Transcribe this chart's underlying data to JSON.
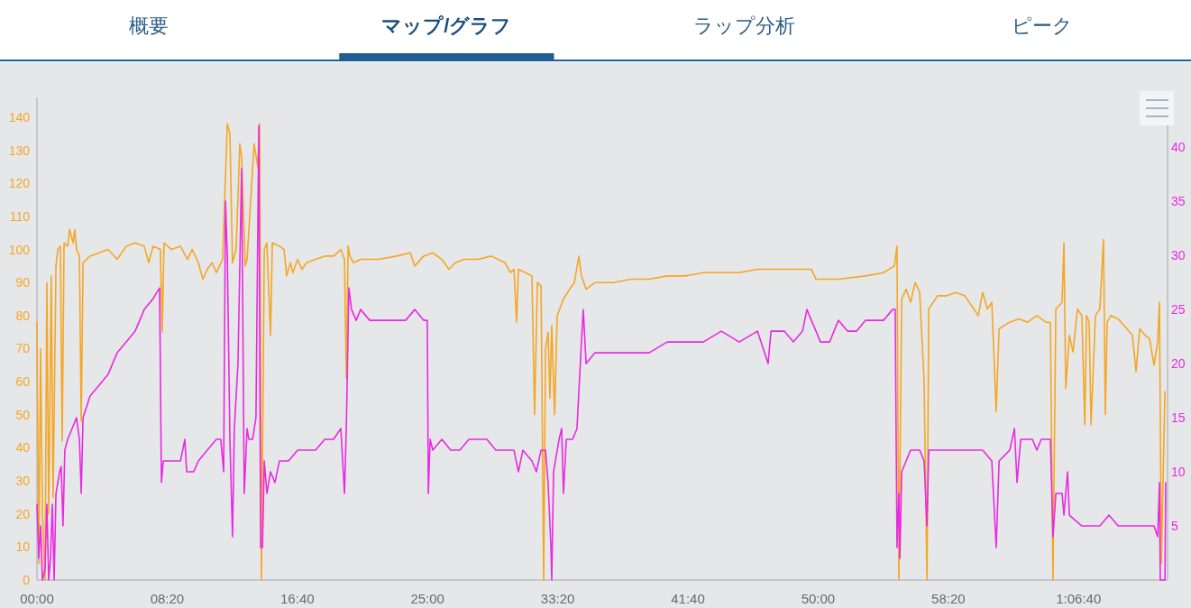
{
  "chart_data": {
    "type": "line",
    "annotations": [
      "概要",
      "マップ/グラフ",
      "ラップ分析",
      "ピーク"
    ],
    "xlim": [
      0,
      4342
    ],
    "ylim": [
      0,
      146
    ],
    "y2lim": [
      0,
      44.6
    ],
    "xticks": [
      {
        "value": 0,
        "label": "00:00"
      },
      {
        "value": 500,
        "label": "08:20"
      },
      {
        "value": 1000,
        "label": "16:40"
      },
      {
        "value": 1500,
        "label": "25:00"
      },
      {
        "value": 2000,
        "label": "33:20"
      },
      {
        "value": 2500,
        "label": "41:40"
      },
      {
        "value": 3000,
        "label": "50:00"
      },
      {
        "value": 3500,
        "label": "58:20"
      },
      {
        "value": 4000,
        "label": "1:06:40"
      }
    ],
    "yticks": [
      0,
      10,
      20,
      30,
      40,
      50,
      60,
      70,
      80,
      90,
      100,
      110,
      120,
      130,
      140
    ],
    "y2ticks": [
      5,
      10,
      15,
      20,
      25,
      30,
      35,
      40
    ],
    "series": [
      {
        "color": "#f5a623",
        "axis": "y",
        "x": [
          0,
          7,
          14,
          21,
          31,
          38,
          45,
          55,
          62,
          73,
          80,
          90,
          97,
          104,
          118,
          125,
          139,
          145,
          152,
          163,
          170,
          177,
          204,
          239,
          273,
          308,
          343,
          377,
          412,
          429,
          446,
          474,
          481,
          488,
          516,
          551,
          578,
          596,
          620,
          637,
          654,
          672,
          689,
          713,
          731,
          741,
          751,
          765,
          779,
          786,
          800,
          807,
          834,
          848,
          855,
          862,
          873,
          883,
          897,
          904,
          931,
          949,
          959,
          973,
          983,
          1001,
          1018,
          1035,
          1070,
          1105,
          1139,
          1167,
          1181,
          1188,
          1195,
          1202,
          1215,
          1243,
          1312,
          1382,
          1434,
          1451,
          1485,
          1520,
          1555,
          1582,
          1607,
          1641,
          1693,
          1745,
          1797,
          1818,
          1832,
          1842,
          1849,
          1901,
          1911,
          1922,
          1936,
          1946,
          1953,
          1963,
          1970,
          1977,
          1988,
          1998,
          2022,
          2046,
          2064,
          2081,
          2091,
          2109,
          2143,
          2213,
          2282,
          2351,
          2420,
          2490,
          2559,
          2628,
          2697,
          2767,
          2836,
          2905,
          2974,
          2992,
          3009,
          3078,
          3182,
          3251,
          3293,
          3303,
          3310,
          3321,
          3338,
          3355,
          3373,
          3390,
          3407,
          3418,
          3425,
          3459,
          3494,
          3528,
          3563,
          3598,
          3615,
          3632,
          3650,
          3667,
          3684,
          3695,
          3736,
          3771,
          3805,
          3840,
          3875,
          3892,
          3902,
          3913,
          3937,
          3944,
          3951,
          3965,
          3979,
          3996,
          4013,
          4024,
          4031,
          4041,
          4048,
          4065,
          4082,
          4096,
          4103,
          4110,
          4124,
          4152,
          4186,
          4207,
          4221,
          4235,
          4256,
          4273,
          4290,
          4304,
          4311,
          4318,
          4332
        ],
        "values": [
          78,
          5,
          70,
          20,
          0,
          90,
          20,
          92,
          25,
          95,
          100,
          101,
          42,
          102,
          101,
          106,
          102,
          106,
          100,
          98,
          48,
          96,
          98,
          99,
          100,
          97,
          101,
          102,
          101,
          96,
          101,
          100,
          75,
          102,
          100,
          101,
          97,
          100,
          96,
          91,
          94,
          96,
          93,
          97,
          138,
          135,
          96,
          100,
          132,
          128,
          95,
          97,
          132,
          125,
          138,
          0,
          100,
          102,
          74,
          102,
          101,
          100,
          92,
          96,
          93,
          97,
          94,
          96,
          97,
          98,
          98,
          100,
          97,
          61,
          101,
          98,
          96,
          97,
          97,
          98,
          99,
          95,
          98,
          99,
          97,
          94,
          96,
          97,
          97,
          98,
          96,
          93,
          94,
          78,
          94,
          92,
          50,
          90,
          89,
          0,
          70,
          75,
          55,
          77,
          50,
          80,
          85,
          88,
          90,
          98,
          92,
          88,
          90,
          90,
          91,
          91,
          92,
          92,
          93,
          93,
          93,
          94,
          94,
          94,
          94,
          91,
          91,
          91,
          92,
          93,
          95,
          101,
          0,
          85,
          88,
          84,
          90,
          87,
          60,
          0,
          82,
          86,
          86,
          87,
          86,
          82,
          80,
          87,
          82,
          84,
          51,
          76,
          78,
          79,
          78,
          80,
          78,
          78,
          0,
          82,
          84,
          102,
          58,
          74,
          69,
          82,
          80,
          47,
          80,
          78,
          47,
          80,
          82,
          103,
          50,
          78,
          80,
          79,
          76,
          74,
          63,
          76,
          74,
          73,
          65,
          72,
          84,
          5,
          57
        ]
      },
      {
        "color": "#e82ae2",
        "axis": "y2",
        "x": [
          0,
          7,
          14,
          21,
          31,
          38,
          45,
          52,
          59,
          66,
          73,
          80,
          87,
          93,
          100,
          107,
          118,
          135,
          152,
          163,
          170,
          177,
          204,
          239,
          273,
          308,
          343,
          377,
          412,
          446,
          471,
          478,
          485,
          516,
          551,
          568,
          575,
          602,
          620,
          654,
          689,
          706,
          717,
          724,
          731,
          741,
          751,
          758,
          772,
          786,
          796,
          807,
          814,
          828,
          841,
          852,
          859,
          866,
          873,
          883,
          897,
          914,
          931,
          966,
          1001,
          1035,
          1070,
          1105,
          1139,
          1167,
          1181,
          1188,
          1198,
          1208,
          1226,
          1243,
          1278,
          1312,
          1347,
          1382,
          1416,
          1451,
          1485,
          1499,
          1503,
          1510,
          1520,
          1555,
          1589,
          1624,
          1659,
          1693,
          1728,
          1762,
          1832,
          1849,
          1866,
          1901,
          1918,
          1936,
          1953,
          1963,
          1974,
          1977,
          1984,
          2005,
          2015,
          2022,
          2033,
          2057,
          2074,
          2091,
          2098,
          2109,
          2143,
          2213,
          2282,
          2351,
          2420,
          2490,
          2559,
          2628,
          2697,
          2767,
          2808,
          2819,
          2870,
          2905,
          2940,
          2957,
          2974,
          2992,
          3009,
          3044,
          3078,
          3113,
          3148,
          3182,
          3217,
          3251,
          3286,
          3296,
          3303,
          3310,
          3314,
          3321,
          3338,
          3355,
          3390,
          3407,
          3418,
          3425,
          3494,
          3563,
          3632,
          3667,
          3684,
          3695,
          3736,
          3754,
          3764,
          3778,
          3823,
          3840,
          3857,
          3875,
          3892,
          3902,
          3913,
          3937,
          3944,
          3958,
          3965,
          4013,
          4048,
          4082,
          4117,
          4152,
          4186,
          4221,
          4256,
          4290,
          4304,
          4311,
          4314,
          4332,
          4335
        ],
        "values": [
          7,
          2,
          5,
          0,
          1,
          7,
          0,
          2,
          7,
          0,
          8,
          9,
          10,
          10.5,
          5,
          12,
          13,
          14,
          15,
          13,
          8,
          15,
          17,
          18,
          19,
          21,
          22,
          23,
          25,
          26,
          27,
          9,
          11,
          11,
          11,
          13,
          10,
          10,
          11,
          12,
          13,
          13,
          10,
          35,
          30,
          13,
          4,
          14,
          20,
          38,
          8,
          14,
          13,
          13,
          15,
          42,
          3,
          3,
          11,
          8,
          10,
          9,
          11,
          11,
          12,
          12,
          12,
          13,
          13,
          14,
          8,
          14,
          27,
          25,
          24,
          25,
          24,
          24,
          24,
          24,
          24,
          25,
          24,
          24,
          8,
          13,
          12,
          13,
          12,
          12,
          13,
          13,
          13,
          12,
          12,
          10,
          12,
          11,
          10,
          12,
          12,
          9,
          3,
          0,
          10,
          13,
          14,
          8,
          13,
          13,
          14,
          22,
          25,
          20,
          21,
          21,
          21,
          21,
          22,
          22,
          22,
          23,
          22,
          23,
          20,
          23,
          23,
          22,
          23,
          25,
          24,
          23,
          22,
          22,
          24,
          23,
          23,
          24,
          24,
          24,
          25,
          25,
          3,
          8,
          2,
          10,
          11,
          12,
          12,
          11,
          5,
          12,
          12,
          12,
          12,
          11,
          3,
          11,
          12,
          14,
          9,
          13,
          13,
          12,
          13,
          13,
          13,
          4,
          8,
          8,
          6,
          10,
          6,
          5,
          5,
          5,
          6,
          5,
          5,
          5,
          5,
          5,
          4,
          9,
          0,
          0,
          9
        ]
      }
    ]
  }
}
